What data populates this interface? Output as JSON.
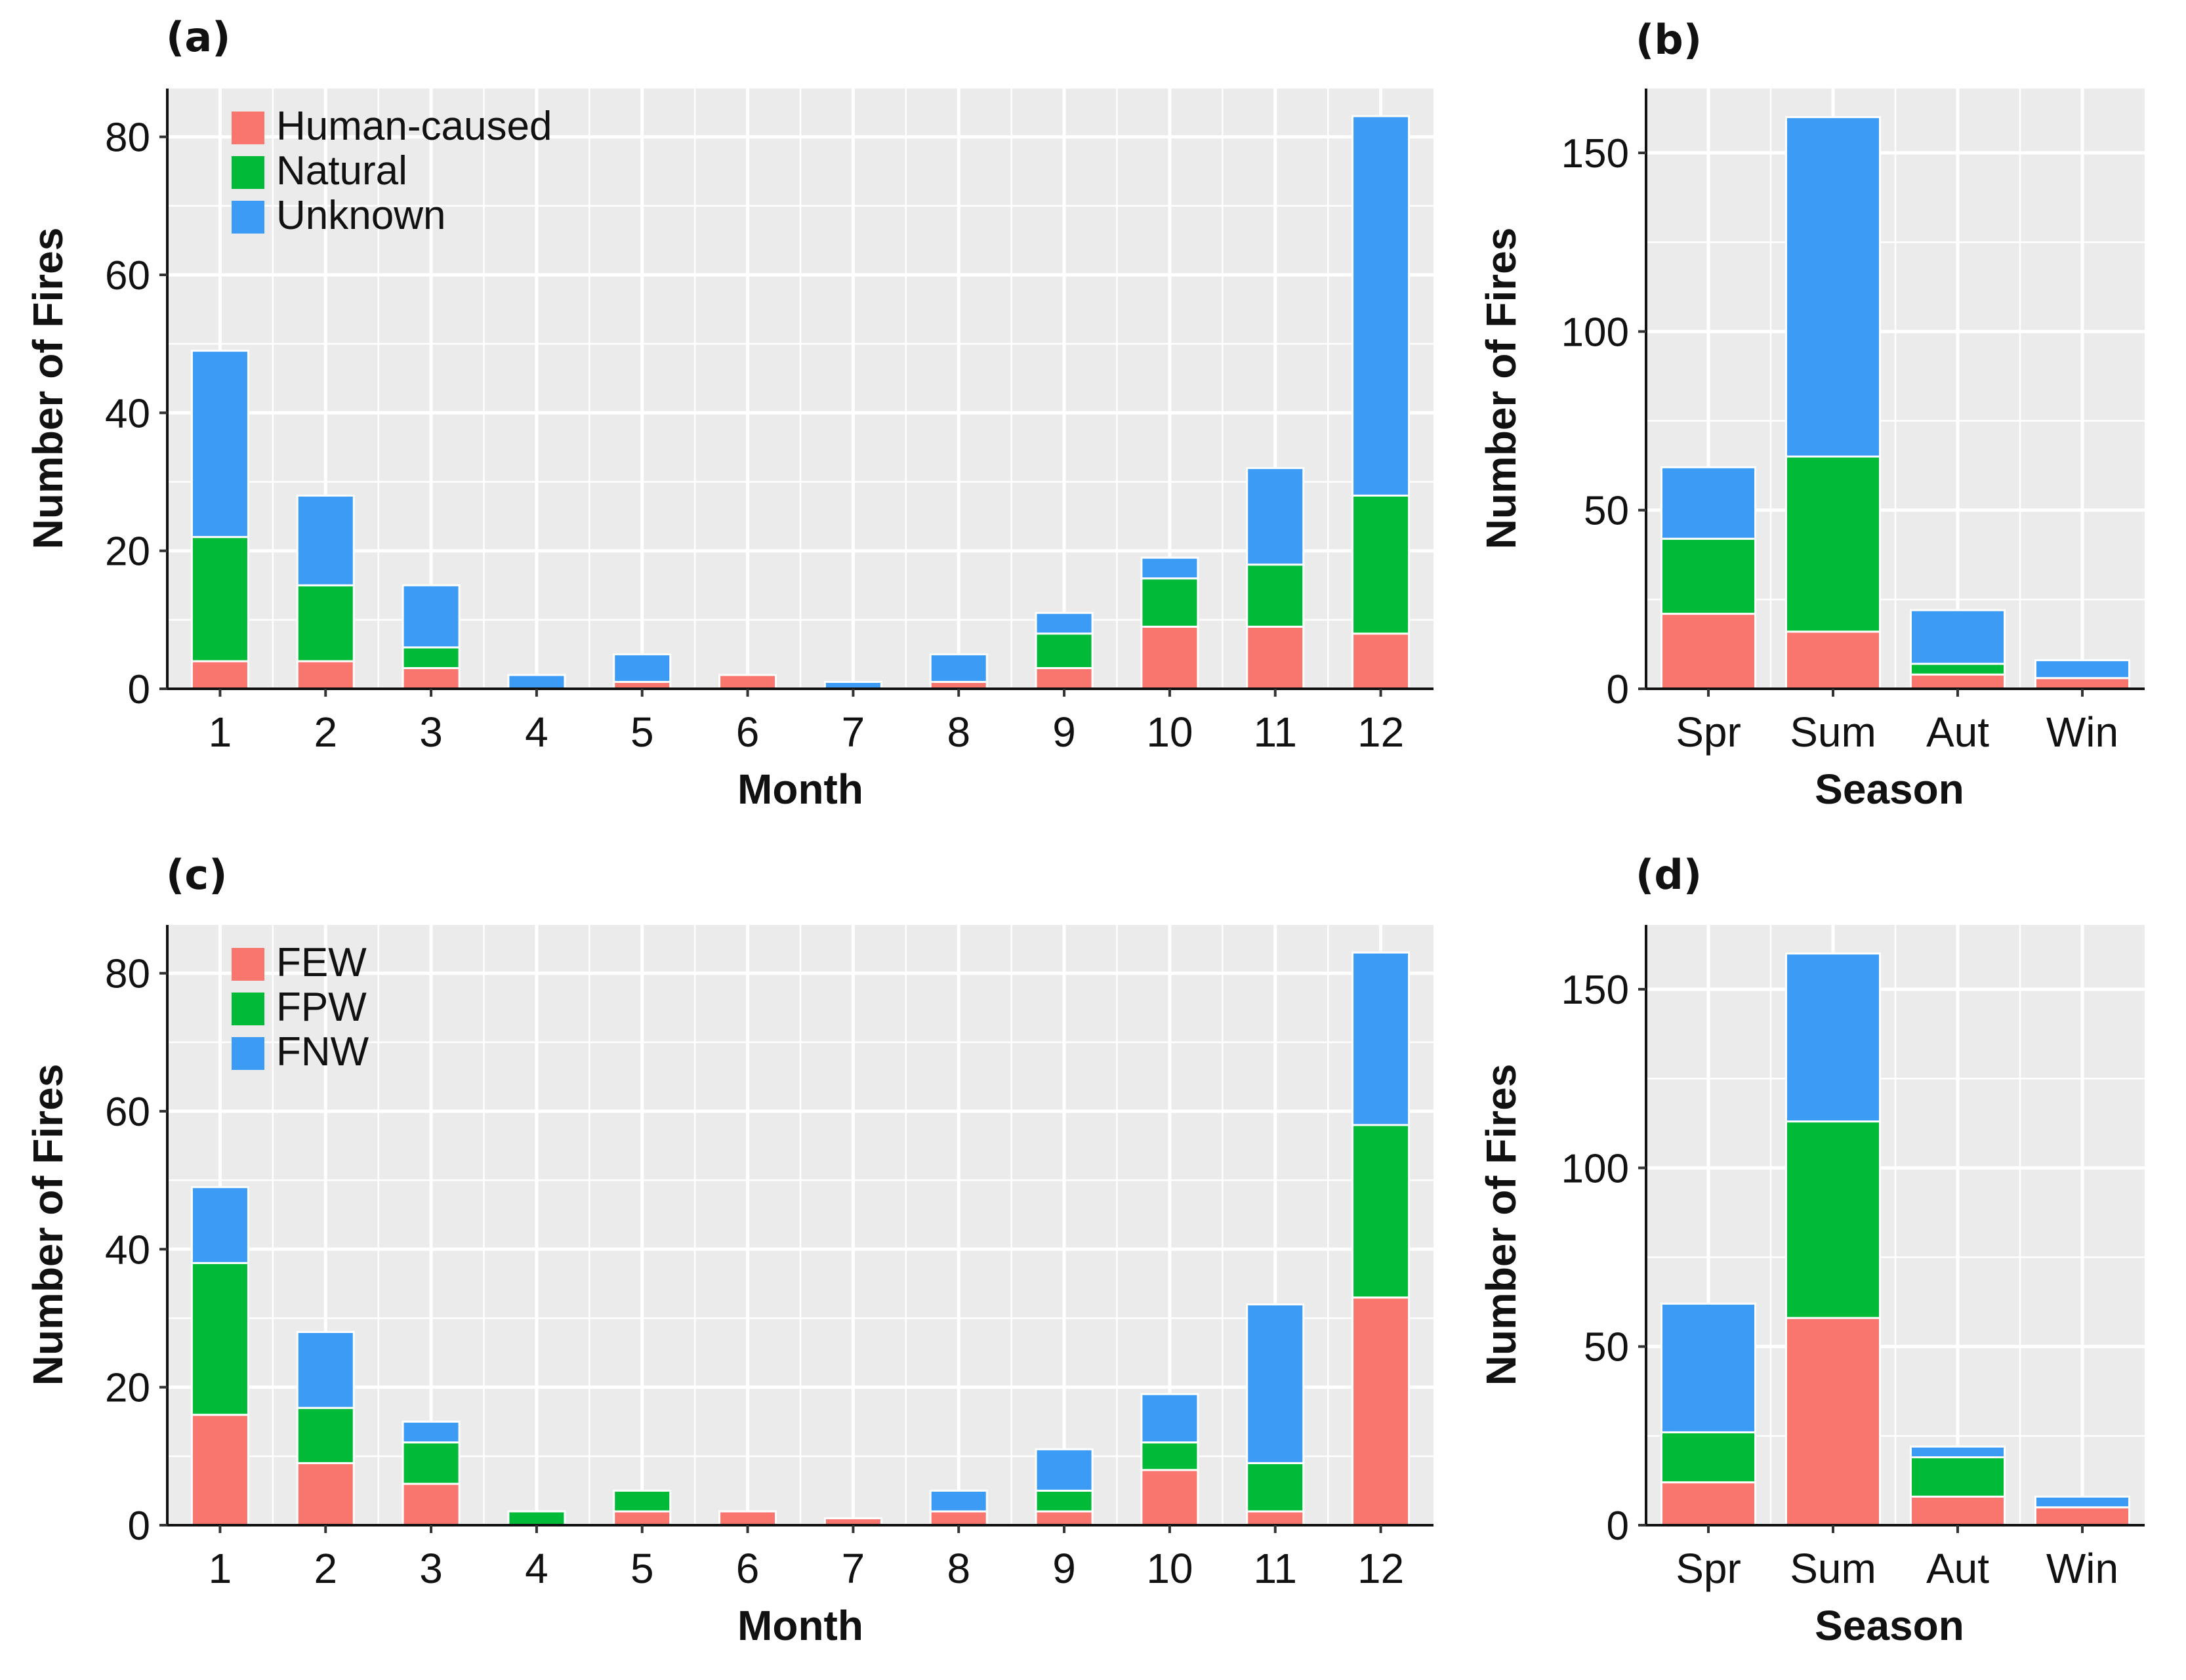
{
  "figure": {
    "colors": {
      "red": "#F8766D",
      "green": "#00BA38",
      "blue": "#3B9BF5",
      "panel_bg": "#EBEBEB",
      "grid": "#FFFFFF"
    }
  },
  "chart_data": [
    {
      "id": "a",
      "type": "bar",
      "stacked": true,
      "panel_label": "(a)",
      "xlabel": "Month",
      "ylabel": "Number of Fires",
      "ylim": [
        0,
        87
      ],
      "yticks": [
        0,
        20,
        40,
        60,
        80
      ],
      "ytick_labels": [
        "0",
        "20",
        "40",
        "60",
        "80"
      ],
      "legend_position": "top-left",
      "categories": [
        "1",
        "2",
        "3",
        "4",
        "5",
        "6",
        "7",
        "8",
        "9",
        "10",
        "11",
        "12"
      ],
      "series": [
        {
          "name": "Human-caused",
          "color": "#F8766D",
          "values": [
            4,
            4,
            3,
            0,
            1,
            2,
            0,
            1,
            3,
            9,
            9,
            8
          ]
        },
        {
          "name": "Natural",
          "color": "#00BA38",
          "values": [
            18,
            11,
            3,
            0,
            0,
            0,
            0,
            0,
            5,
            7,
            9,
            20
          ]
        },
        {
          "name": "Unknown",
          "color": "#3B9BF5",
          "values": [
            27,
            13,
            9,
            2,
            4,
            0,
            1,
            4,
            3,
            3,
            14,
            55
          ]
        }
      ]
    },
    {
      "id": "b",
      "type": "bar",
      "stacked": true,
      "panel_label": "(b)",
      "xlabel": "Season",
      "ylabel": "Number of Fires",
      "ylim": [
        0,
        168
      ],
      "yticks": [
        0,
        50,
        100,
        150
      ],
      "ytick_labels": [
        "0",
        "50",
        "100",
        "150"
      ],
      "categories": [
        "Spr",
        "Sum",
        "Aut",
        "Win"
      ],
      "series": [
        {
          "name": "Human-caused",
          "color": "#F8766D",
          "values": [
            21,
            16,
            4,
            3
          ]
        },
        {
          "name": "Natural",
          "color": "#00BA38",
          "values": [
            21,
            49,
            3,
            0
          ]
        },
        {
          "name": "Unknown",
          "color": "#3B9BF5",
          "values": [
            20,
            95,
            15,
            5
          ]
        }
      ]
    },
    {
      "id": "c",
      "type": "bar",
      "stacked": true,
      "panel_label": "(c)",
      "xlabel": "Month",
      "ylabel": "Number of Fires",
      "ylim": [
        0,
        87
      ],
      "yticks": [
        0,
        20,
        40,
        60,
        80
      ],
      "ytick_labels": [
        "0",
        "20",
        "40",
        "60",
        "80"
      ],
      "legend_position": "top-left",
      "categories": [
        "1",
        "2",
        "3",
        "4",
        "5",
        "6",
        "7",
        "8",
        "9",
        "10",
        "11",
        "12"
      ],
      "series": [
        {
          "name": "FEW",
          "color": "#F8766D",
          "values": [
            16,
            9,
            6,
            0,
            2,
            2,
            1,
            2,
            2,
            8,
            2,
            33
          ]
        },
        {
          "name": "FPW",
          "color": "#00BA38",
          "values": [
            22,
            8,
            6,
            2,
            3,
            0,
            0,
            0,
            3,
            4,
            7,
            25
          ]
        },
        {
          "name": "FNW",
          "color": "#3B9BF5",
          "values": [
            11,
            11,
            3,
            0,
            0,
            0,
            0,
            3,
            6,
            7,
            23,
            25
          ]
        }
      ]
    },
    {
      "id": "d",
      "type": "bar",
      "stacked": true,
      "panel_label": "(d)",
      "xlabel": "Season",
      "ylabel": "Number of Fires",
      "ylim": [
        0,
        168
      ],
      "yticks": [
        0,
        50,
        100,
        150
      ],
      "ytick_labels": [
        "0",
        "50",
        "100",
        "150"
      ],
      "categories": [
        "Spr",
        "Sum",
        "Aut",
        "Win"
      ],
      "series": [
        {
          "name": "FEW",
          "color": "#F8766D",
          "values": [
            12,
            58,
            8,
            5
          ]
        },
        {
          "name": "FPW",
          "color": "#00BA38",
          "values": [
            14,
            55,
            11,
            0
          ]
        },
        {
          "name": "FNW",
          "color": "#3B9BF5",
          "values": [
            36,
            47,
            3,
            3
          ]
        }
      ]
    }
  ]
}
